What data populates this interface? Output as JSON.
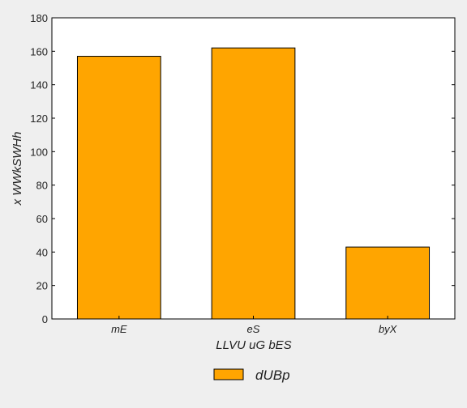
{
  "chart_data": {
    "type": "bar",
    "categories": [
      "mE",
      "eS",
      "byX"
    ],
    "series": [
      {
        "name": "dUBp",
        "values": [
          157,
          162,
          43
        ]
      }
    ],
    "xlabel": "LLVU  uG bES",
    "ylabel": "x WWkSWHh",
    "ylim": [
      0,
      180
    ],
    "yticks": [
      0,
      20,
      40,
      60,
      80,
      100,
      120,
      140,
      160,
      180
    ],
    "grid": false,
    "legend_position": "bottom-center",
    "colors": {
      "bar": "#ffa500",
      "bar_edge": "#000000",
      "plot_bg": "#ffffff",
      "page_bg": "#efefef"
    }
  }
}
